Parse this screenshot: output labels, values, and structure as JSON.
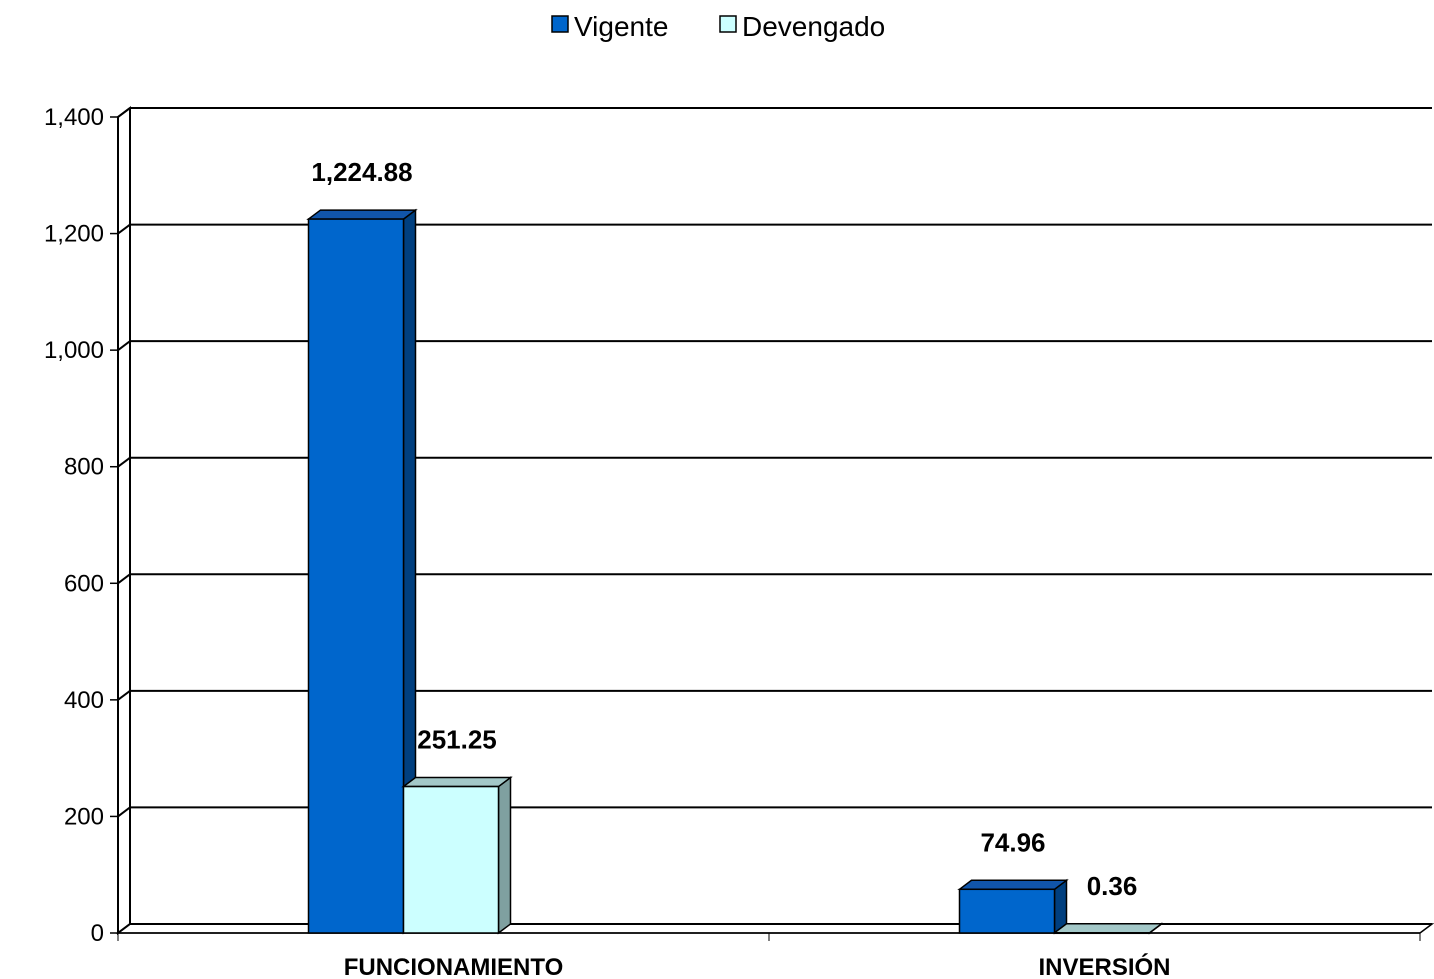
{
  "chart_data": {
    "type": "bar",
    "categories": [
      "FUNCIONAMIENTO",
      "INVERSIÓN"
    ],
    "series": [
      {
        "name": "Vigente",
        "values": [
          1224.88,
          74.96
        ],
        "value_labels": [
          "1,224.88",
          "74.96"
        ],
        "color": "#0066CC",
        "side_color": "#003F7F",
        "top_color": "#1155AA"
      },
      {
        "name": "Devengado",
        "values": [
          251.25,
          0.36
        ],
        "value_labels": [
          "251.25",
          "0.36"
        ],
        "color": "#CCFFFF",
        "side_color": "#7FA0A0",
        "top_color": "#A3C8C8"
      }
    ],
    "ylim": [
      0,
      1400
    ],
    "yticks": [
      0,
      200,
      400,
      600,
      800,
      1000,
      1200,
      1400
    ],
    "ytick_labels": [
      "0",
      "200",
      "400",
      "600",
      "800",
      "1,000",
      "1,200",
      "1,400"
    ],
    "grid": true,
    "legend_position": "top-center",
    "style": "3d-clustered-column",
    "xlabel": "",
    "ylabel": "",
    "title": ""
  }
}
